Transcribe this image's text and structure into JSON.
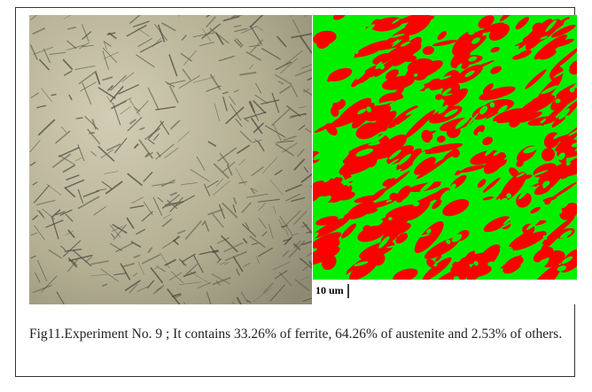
{
  "figure": {
    "scale_label": "10 um",
    "caption": "Fig11.Experiment No. 9 ; It contains 33.26% of ferrite, 64.26% of austenite and 2.53% of others."
  }
}
